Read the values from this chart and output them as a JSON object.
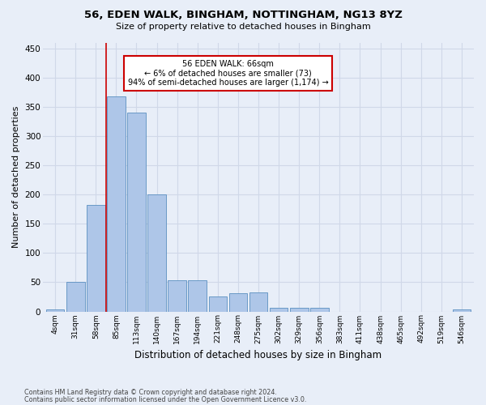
{
  "title_line1": "56, EDEN WALK, BINGHAM, NOTTINGHAM, NG13 8YZ",
  "title_line2": "Size of property relative to detached houses in Bingham",
  "xlabel": "Distribution of detached houses by size in Bingham",
  "ylabel": "Number of detached properties",
  "bin_labels": [
    "4sqm",
    "31sqm",
    "58sqm",
    "85sqm",
    "113sqm",
    "140sqm",
    "167sqm",
    "194sqm",
    "221sqm",
    "248sqm",
    "275sqm",
    "302sqm",
    "329sqm",
    "356sqm",
    "383sqm",
    "411sqm",
    "438sqm",
    "465sqm",
    "492sqm",
    "519sqm",
    "546sqm"
  ],
  "bar_values": [
    4,
    50,
    182,
    368,
    340,
    200,
    54,
    54,
    26,
    31,
    32,
    6,
    6,
    6,
    0,
    0,
    0,
    0,
    0,
    0,
    3
  ],
  "bar_color": "#aec6e8",
  "bar_edge_color": "#5a8fc0",
  "property_line_x": 2.5,
  "annotation_text_line1": "56 EDEN WALK: 66sqm",
  "annotation_text_line2": "← 6% of detached houses are smaller (73)",
  "annotation_text_line3": "94% of semi-detached houses are larger (1,174) →",
  "annotation_box_color": "#ffffff",
  "annotation_box_edge_color": "#cc0000",
  "vline_color": "#cc0000",
  "footer_line1": "Contains HM Land Registry data © Crown copyright and database right 2024.",
  "footer_line2": "Contains public sector information licensed under the Open Government Licence v3.0.",
  "background_color": "#e8eef8",
  "grid_color": "#d0d8e8",
  "ylim": [
    0,
    460
  ],
  "yticks": [
    0,
    50,
    100,
    150,
    200,
    250,
    300,
    350,
    400,
    450
  ]
}
